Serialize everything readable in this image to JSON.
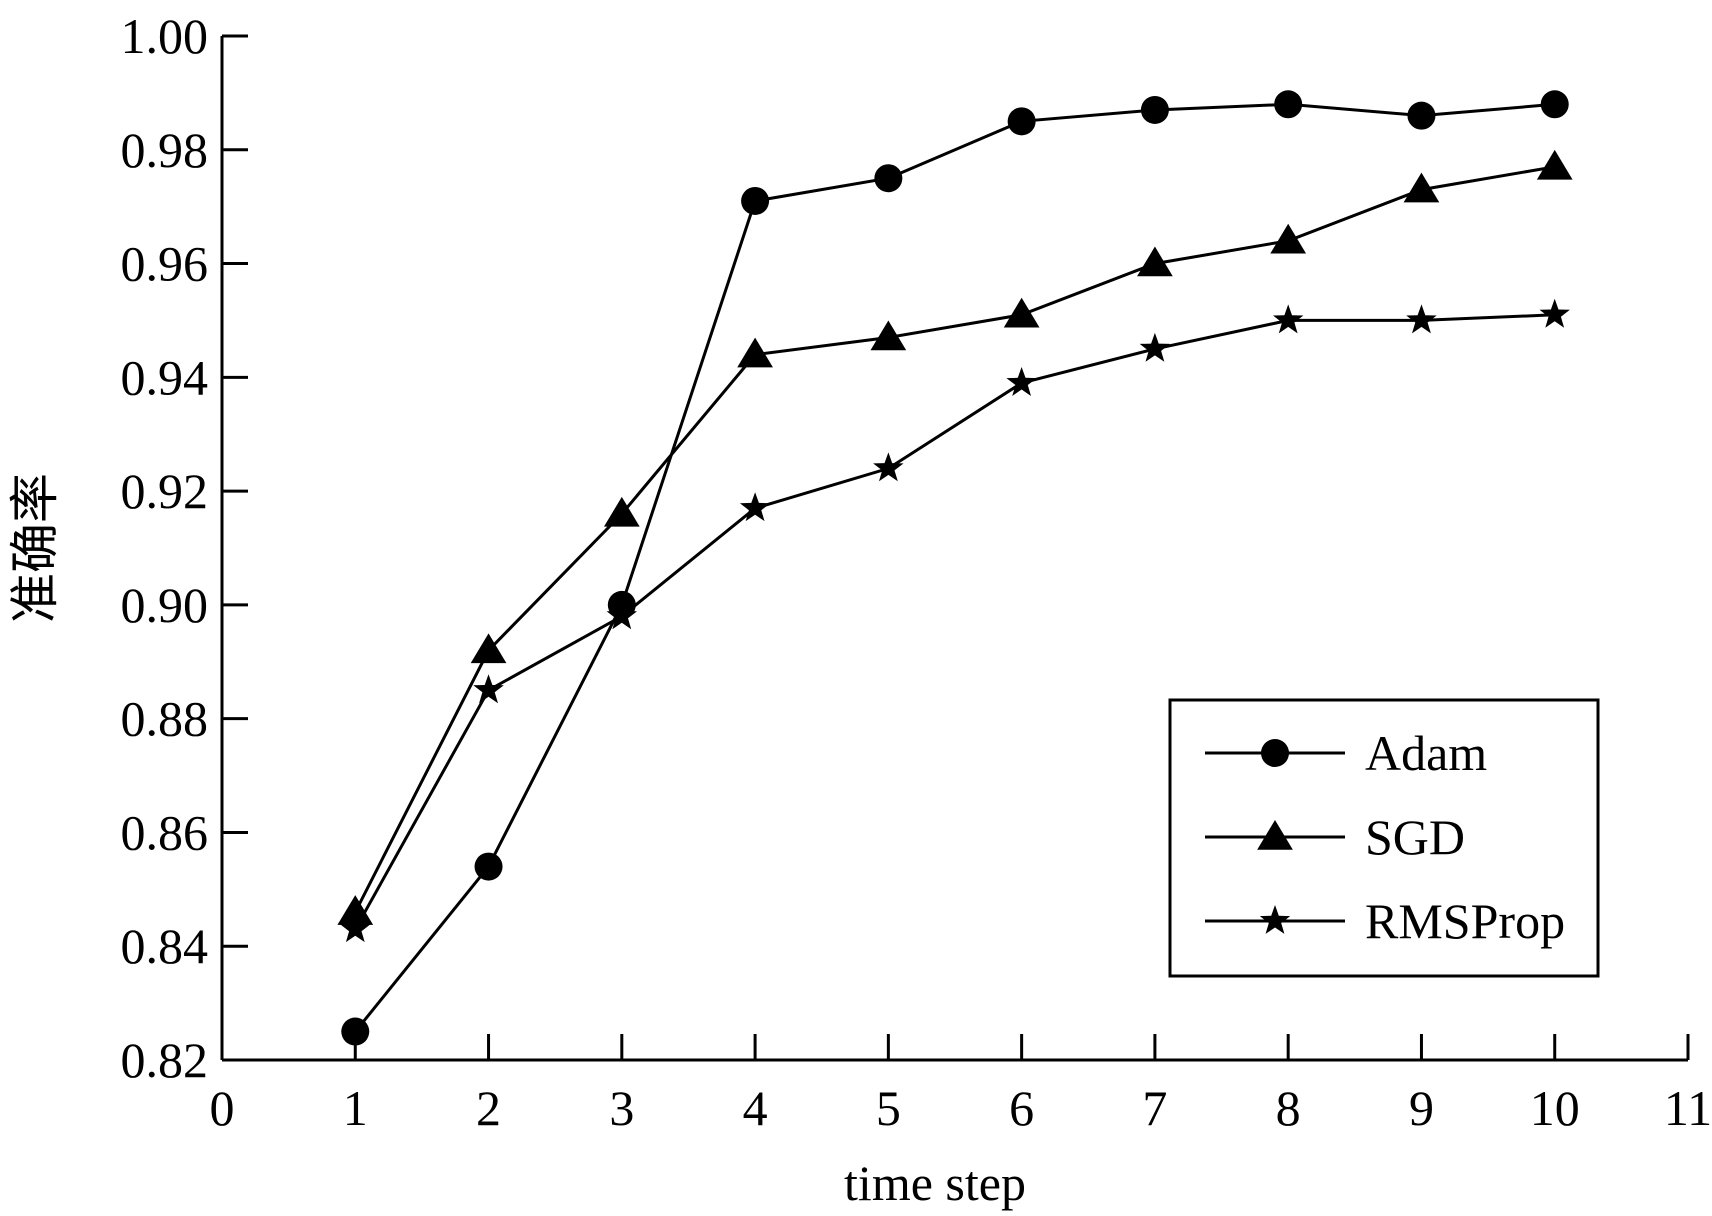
{
  "chart_data": {
    "type": "line",
    "title": "",
    "xlabel": "time step",
    "ylabel": "准确率",
    "xlim": [
      0,
      11
    ],
    "ylim": [
      0.82,
      1.0
    ],
    "x_ticks": [
      "0",
      "1",
      "2",
      "3",
      "4",
      "5",
      "6",
      "7",
      "8",
      "9",
      "10",
      "11"
    ],
    "y_ticks": [
      "0.82",
      "0.84",
      "0.86",
      "0.88",
      "0.90",
      "0.92",
      "0.94",
      "0.96",
      "0.98",
      "1.00"
    ],
    "grid": false,
    "legend_position": "bottom-right",
    "x": [
      1,
      2,
      3,
      4,
      5,
      6,
      7,
      8,
      9,
      10
    ],
    "series": [
      {
        "name": "Adam",
        "marker": "circle",
        "values": [
          0.825,
          0.854,
          0.9,
          0.971,
          0.975,
          0.985,
          0.987,
          0.988,
          0.986,
          0.988
        ]
      },
      {
        "name": "SGD",
        "marker": "triangle",
        "values": [
          0.846,
          0.892,
          0.916,
          0.944,
          0.947,
          0.951,
          0.96,
          0.964,
          0.973,
          0.977
        ]
      },
      {
        "name": "RMSProp",
        "marker": "star",
        "values": [
          0.843,
          0.885,
          0.898,
          0.917,
          0.924,
          0.939,
          0.945,
          0.95,
          0.95,
          0.951
        ]
      }
    ],
    "colors": {
      "line": "#000000",
      "background": "#ffffff"
    }
  }
}
